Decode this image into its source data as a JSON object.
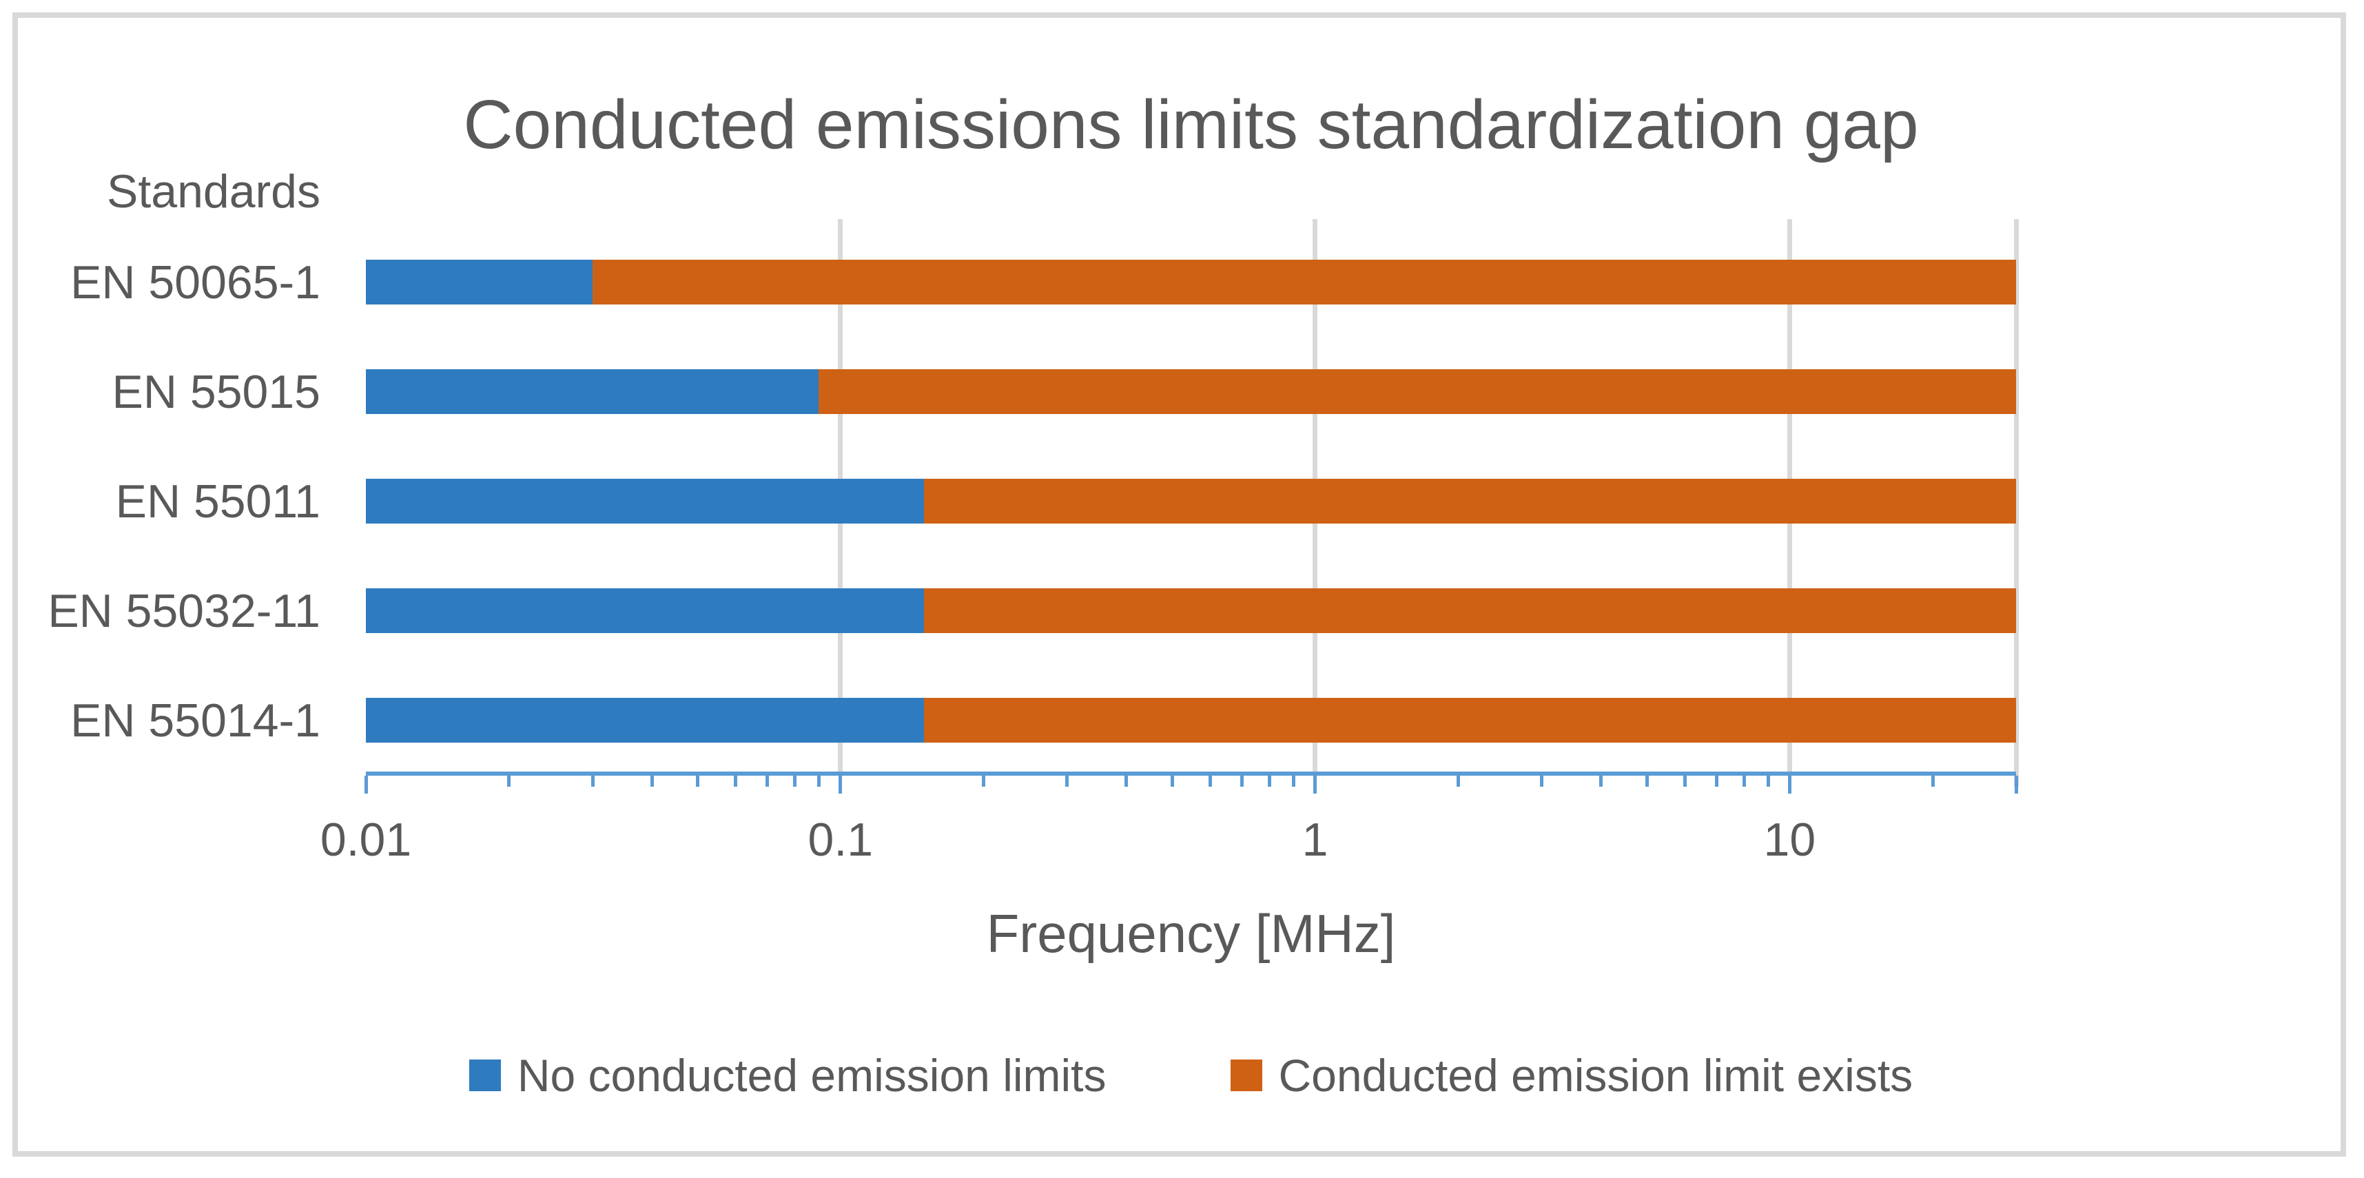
{
  "chart_data": {
    "type": "bar",
    "orientation": "horizontal-stacked",
    "title": "Conducted emissions limits standardization gap",
    "xlabel": "Frequency [MHz]",
    "ylabel": "Standards",
    "categories": [
      "EN 50065-1",
      "EN 55015",
      "EN 55011",
      "EN 55032-11",
      "EN 55014-1"
    ],
    "x_axis": {
      "scale": "log",
      "min": 0.01,
      "max": 30,
      "major_ticks": [
        0.01,
        0.1,
        1,
        10
      ],
      "tick_labels": [
        "0.01",
        "0.1",
        "1",
        "10"
      ],
      "end_tick": 30,
      "minor_ticks": [
        0.02,
        0.03,
        0.04,
        0.05,
        0.06,
        0.07,
        0.08,
        0.09,
        0.2,
        0.3,
        0.4,
        0.5,
        0.6,
        0.7,
        0.8,
        0.9,
        2,
        3,
        4,
        5,
        6,
        7,
        8,
        9,
        20
      ],
      "gridlines": [
        0.1,
        1,
        10,
        30
      ],
      "grid_on": true
    },
    "series": [
      {
        "name": "No conducted emission limits",
        "color": "#2F7BC0",
        "start": 0.01,
        "ends": [
          0.03,
          0.09,
          0.15,
          0.15,
          0.15
        ]
      },
      {
        "name": "Conducted emission limit exists",
        "color": "#CE6114",
        "end": 30
      }
    ],
    "legend_position": "bottom"
  },
  "colors": {
    "axis_line": "#5B9BD5",
    "tick": "#5B9BD5",
    "gridline": "#D9D9D9",
    "frame_border": "#D9D9D9",
    "text": "#595959"
  }
}
